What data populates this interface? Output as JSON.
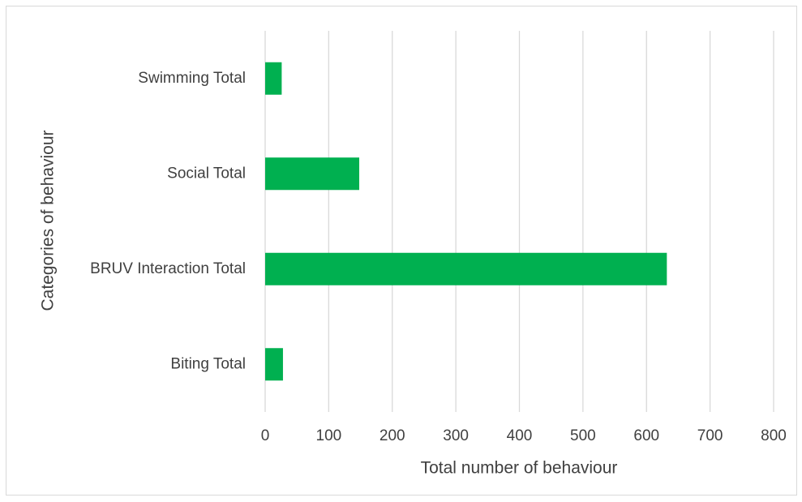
{
  "chart_data": {
    "type": "hbar",
    "x_label": "Total number of behaviour",
    "y_label": "Categories of behaviour",
    "categories": [
      "Biting Total",
      "BRUV Interaction Total",
      "Social Total",
      "Swimming Total"
    ],
    "values": [
      28,
      632,
      148,
      26
    ],
    "color": "#00b050",
    "xlim": [
      0,
      800
    ],
    "xticks": [
      0,
      100,
      200,
      300,
      400,
      500,
      600,
      700,
      800
    ],
    "grid": true
  }
}
